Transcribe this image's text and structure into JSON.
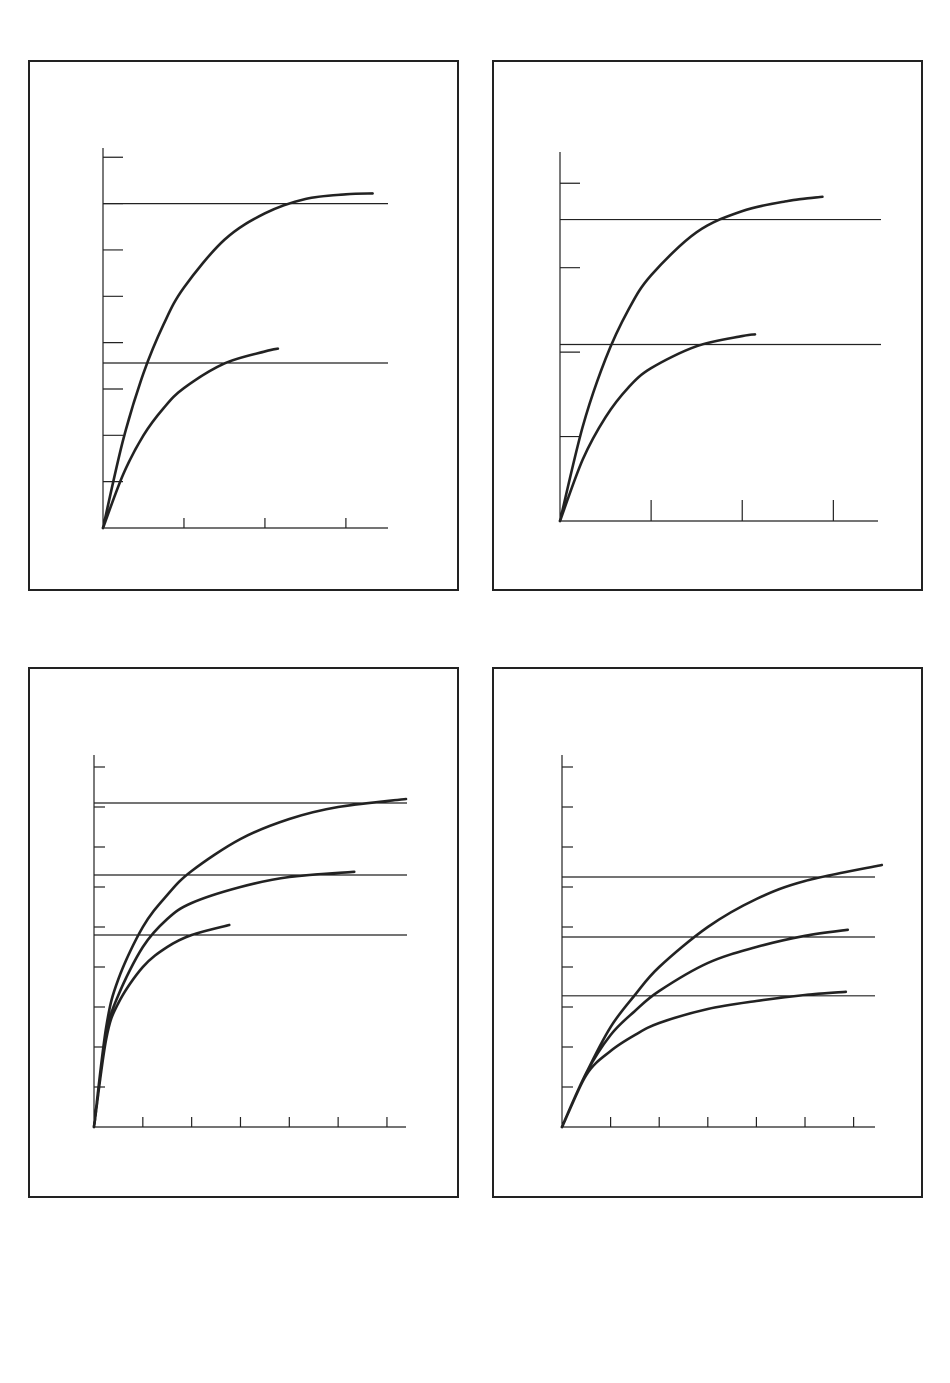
{
  "chart_data": [
    {
      "type": "line",
      "xlim": [
        0,
        3.52
      ],
      "ylim": [
        0,
        8.2
      ],
      "xticks": [
        1,
        2,
        3
      ],
      "yticks": [
        1,
        2,
        3,
        4,
        5,
        6,
        7,
        8
      ],
      "reference_lines": [
        7,
        3.56
      ],
      "series": [
        {
          "color": "#222222",
          "x": [
            0,
            0.25,
            0.5,
            0.75,
            1,
            1.5,
            2,
            2.5,
            3,
            3.33
          ],
          "values": [
            0,
            1.91,
            3.34,
            4.4,
            5.19,
            6.22,
            6.79,
            7.1,
            7.2,
            7.22
          ]
        },
        {
          "color": "#222222",
          "x": [
            0,
            0.25,
            0.5,
            0.75,
            1,
            1.5,
            2,
            2.16
          ],
          "values": [
            0,
            1.16,
            2.0,
            2.59,
            3.02,
            3.55,
            3.81,
            3.87
          ]
        }
      ]
    },
    {
      "type": "line",
      "xlim": [
        0,
        3.49
      ],
      "ylim": [
        0,
        4.37
      ],
      "xticks": [
        1,
        2,
        3
      ],
      "yticks": [
        1,
        2,
        3,
        4
      ],
      "reference_lines": [
        3.57,
        2.09
      ],
      "series": [
        {
          "color": "#222222",
          "x": [
            0,
            0.25,
            0.5,
            0.75,
            1,
            1.5,
            2,
            2.5,
            2.88
          ],
          "values": [
            0,
            1.12,
            1.92,
            2.5,
            2.91,
            3.42,
            3.67,
            3.79,
            3.84
          ]
        },
        {
          "color": "#222222",
          "x": [
            0,
            0.25,
            0.5,
            0.75,
            1,
            1.5,
            2,
            2.14
          ],
          "values": [
            0,
            0.73,
            1.23,
            1.58,
            1.81,
            2.07,
            2.19,
            2.21
          ]
        }
      ]
    },
    {
      "type": "line",
      "xlim": [
        0,
        6.39
      ],
      "ylim": [
        0,
        9.3
      ],
      "xticks": [
        1,
        2,
        3,
        4,
        5,
        6
      ],
      "yticks": [
        1,
        2,
        3,
        4,
        5,
        6,
        7,
        8,
        9
      ],
      "reference_lines": [
        8.1,
        6.3,
        4.8
      ],
      "series": [
        {
          "color": "#222222",
          "x": [
            0,
            0.25,
            0.5,
            1,
            1.5,
            2,
            3,
            4,
            5,
            6.39
          ],
          "values": [
            0,
            2.5,
            3.7,
            5.0,
            5.8,
            6.4,
            7.2,
            7.7,
            8.0,
            8.2
          ]
        },
        {
          "color": "#222222",
          "x": [
            0,
            0.25,
            0.5,
            1,
            1.5,
            2,
            3,
            4,
            5.33
          ],
          "values": [
            0,
            2.3,
            3.3,
            4.5,
            5.2,
            5.6,
            6.0,
            6.25,
            6.38
          ]
        },
        {
          "color": "#222222",
          "x": [
            0,
            0.25,
            0.5,
            1,
            1.5,
            2,
            2.77
          ],
          "values": [
            0,
            2.2,
            3.1,
            4.0,
            4.5,
            4.8,
            5.05
          ]
        }
      ]
    },
    {
      "type": "line",
      "xlim": [
        0,
        6.44
      ],
      "ylim": [
        0,
        9.3
      ],
      "xticks": [
        1,
        2,
        3,
        4,
        5,
        6
      ],
      "yticks": [
        1,
        2,
        3,
        4,
        5,
        6,
        7,
        8,
        9
      ],
      "reference_lines": [
        6.25,
        4.75,
        3.28
      ],
      "series": [
        {
          "color": "#222222",
          "x": [
            0,
            0.5,
            1,
            1.5,
            2,
            3,
            4,
            5,
            6.58
          ],
          "values": [
            0,
            1.35,
            2.5,
            3.3,
            4.0,
            5.0,
            5.7,
            6.15,
            6.55
          ]
        },
        {
          "color": "#222222",
          "x": [
            0,
            0.5,
            1,
            1.5,
            2,
            3,
            4,
            5,
            5.88
          ],
          "values": [
            0,
            1.35,
            2.3,
            2.9,
            3.4,
            4.1,
            4.5,
            4.78,
            4.93
          ]
        },
        {
          "color": "#222222",
          "x": [
            0,
            0.5,
            1,
            1.5,
            2,
            3,
            4,
            5,
            5.84
          ],
          "values": [
            0,
            1.3,
            1.9,
            2.3,
            2.6,
            2.95,
            3.15,
            3.3,
            3.38
          ]
        }
      ]
    }
  ]
}
